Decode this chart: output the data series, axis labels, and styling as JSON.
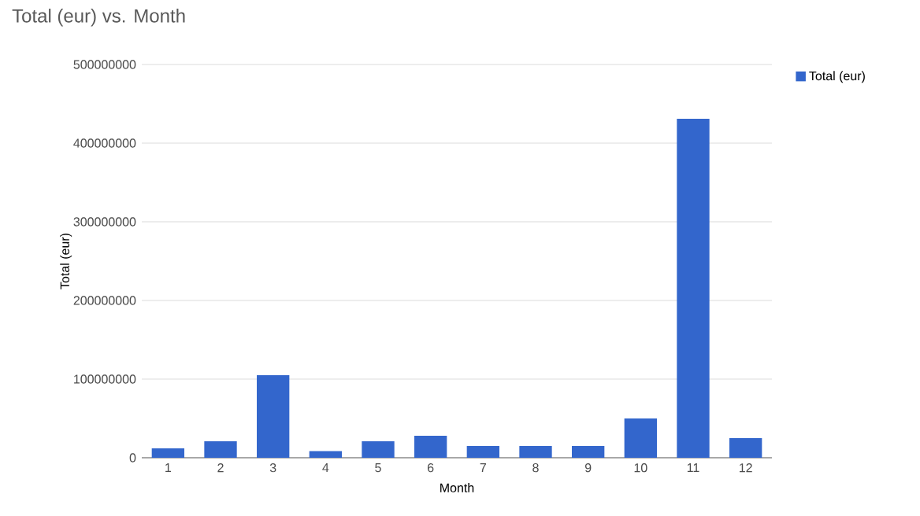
{
  "chart_data": {
    "type": "bar",
    "title": "Total (eur) vs. Month",
    "xlabel": "Month",
    "ylabel": "Total (eur)",
    "categories": [
      "1",
      "2",
      "3",
      "4",
      "5",
      "6",
      "7",
      "8",
      "9",
      "10",
      "11",
      "12"
    ],
    "series": [
      {
        "name": "Total (eur)",
        "color": "#3366cc",
        "values": [
          12000000,
          21000000,
          105000000,
          8500000,
          21000000,
          28000000,
          15000000,
          15000000,
          15000000,
          50000000,
          431000000,
          25000000
        ]
      }
    ],
    "ylim": [
      0,
      500000000
    ],
    "yticks": [
      0,
      100000000,
      200000000,
      300000000,
      400000000,
      500000000
    ],
    "grid": "y",
    "legend": "top right"
  }
}
